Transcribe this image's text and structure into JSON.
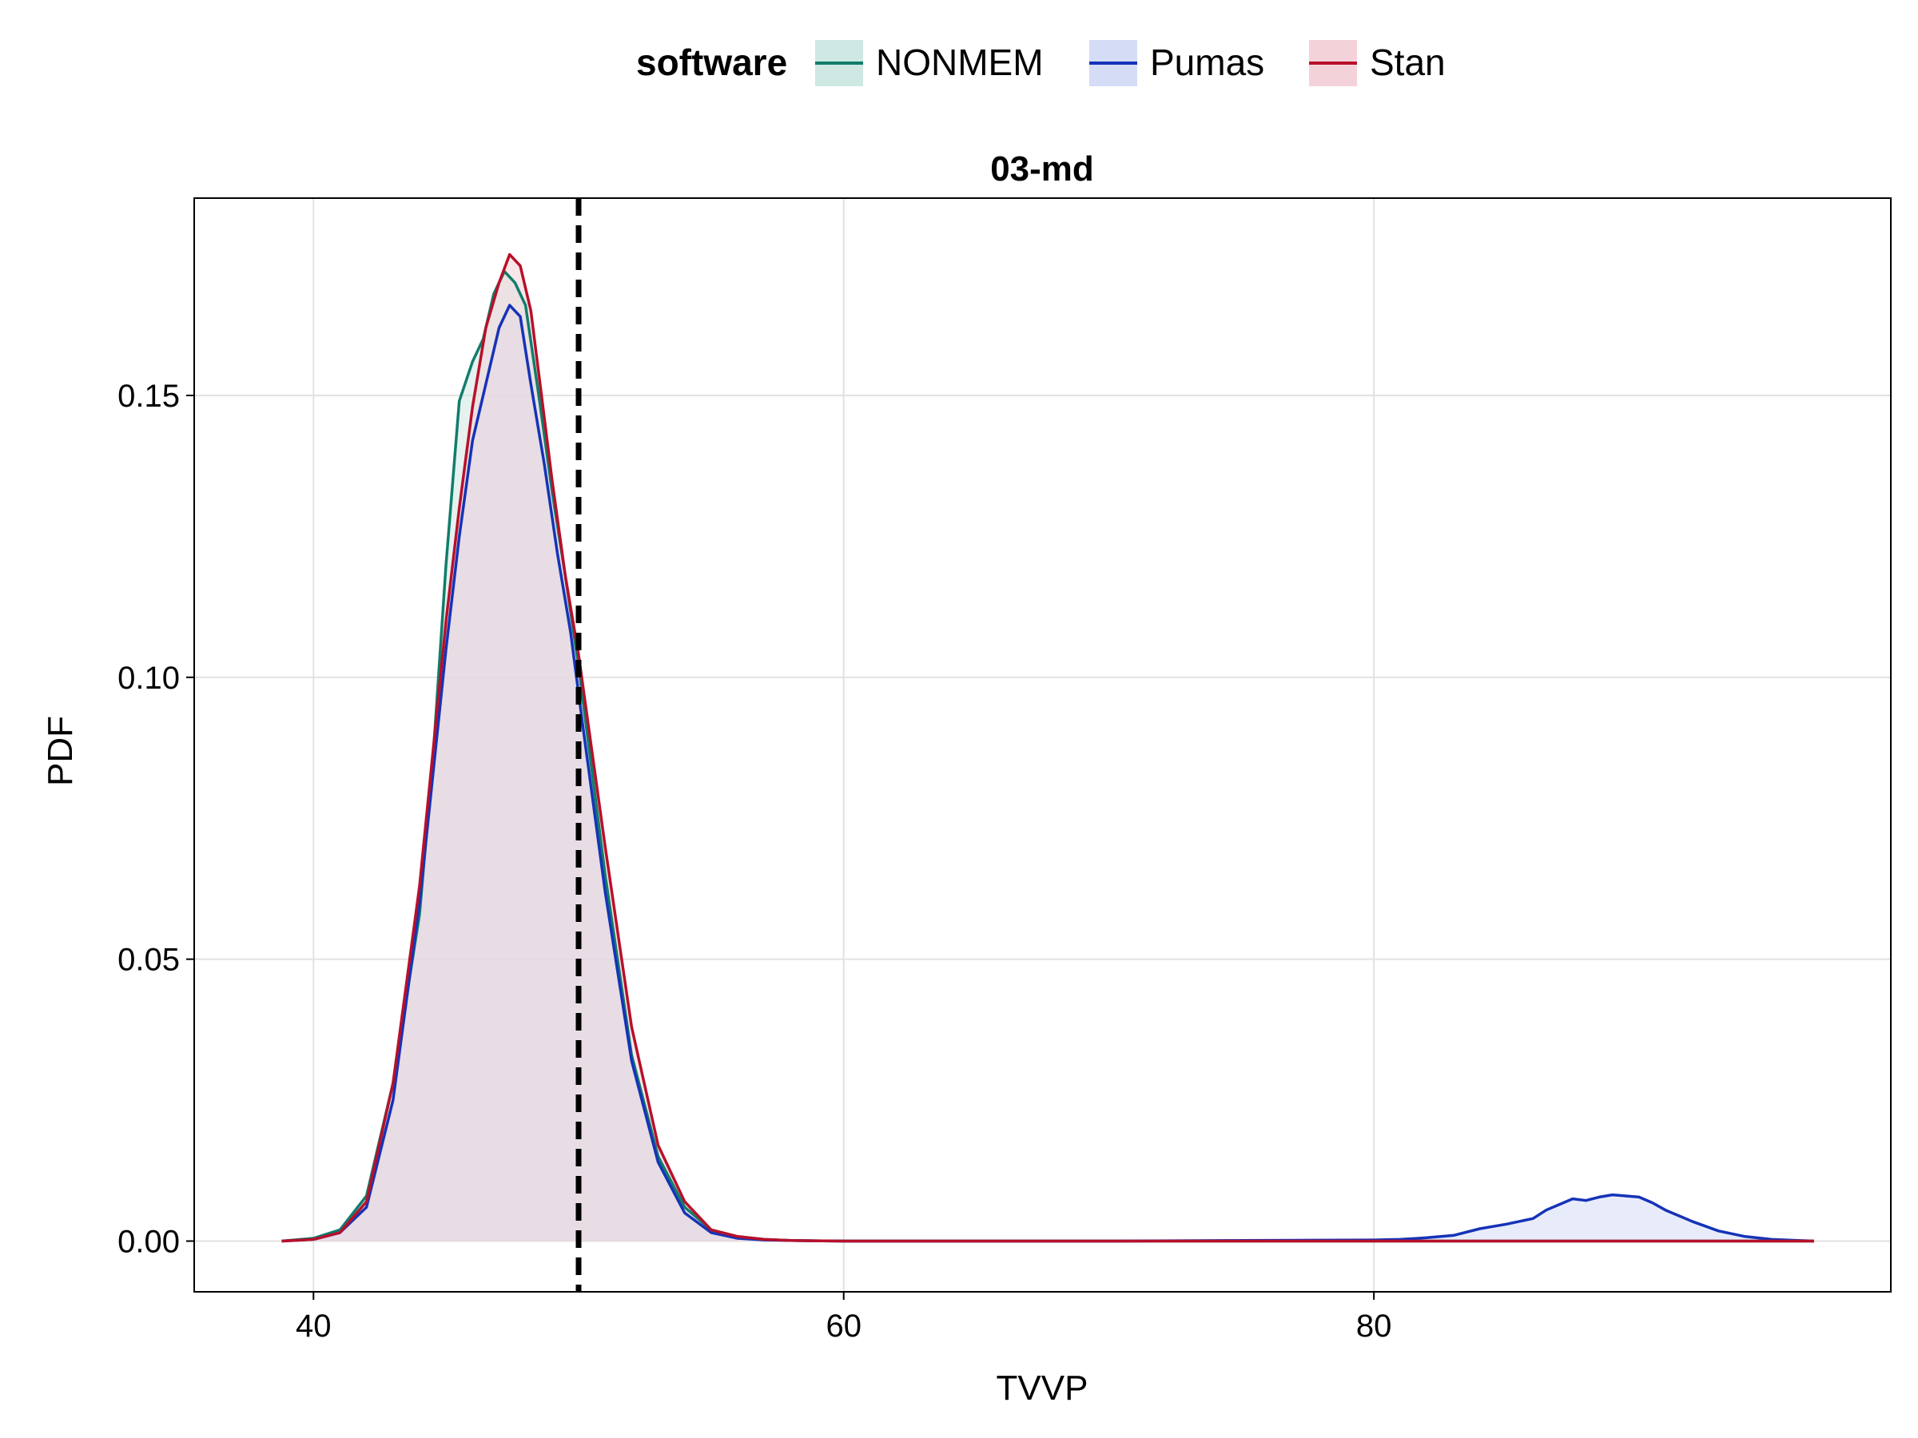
{
  "chart_data": {
    "type": "area",
    "title": "03-md",
    "xlabel": "TVVP",
    "ylabel": "PDF",
    "xlim": [
      35.5,
      99.5
    ],
    "ylim": [
      -0.009,
      0.185
    ],
    "xticks": [
      40,
      60,
      80
    ],
    "xtick_labels": [
      "40",
      "60",
      "80"
    ],
    "yticks": [
      0.0,
      0.05,
      0.1,
      0.15
    ],
    "ytick_labels": [
      "0.00",
      "0.05",
      "0.10",
      "0.15"
    ],
    "grid": true,
    "legend": {
      "title": "software",
      "position": "top-center",
      "entries": [
        "NONMEM",
        "Pumas",
        "Stan"
      ]
    },
    "reference_line": {
      "x": 50,
      "style": "dashed",
      "color": "#000000"
    },
    "series": [
      {
        "name": "NONMEM",
        "color": "#117d6b",
        "fill": "#cfe8e3",
        "x": [
          38.8,
          40,
          41,
          42,
          43,
          44,
          44.5,
          45,
          45.5,
          46,
          46.4,
          46.8,
          47.2,
          47.6,
          48,
          48.5,
          49,
          49.5,
          50,
          51,
          52,
          53,
          54,
          55,
          56,
          57,
          58,
          60,
          70,
          80,
          90,
          96.6
        ],
        "y": [
          0,
          0.0005,
          0.002,
          0.008,
          0.028,
          0.058,
          0.085,
          0.12,
          0.149,
          0.156,
          0.16,
          0.168,
          0.172,
          0.17,
          0.166,
          0.15,
          0.133,
          0.118,
          0.102,
          0.065,
          0.033,
          0.015,
          0.006,
          0.002,
          0.0008,
          0.0003,
          0.0001,
          0,
          0,
          0,
          0,
          0
        ]
      },
      {
        "name": "Pumas",
        "color": "#1533b8",
        "fill": "#d5dcf5",
        "x": [
          38.8,
          40,
          41,
          42,
          43,
          44,
          45,
          45.5,
          46,
          46.5,
          47,
          47.4,
          47.8,
          48.2,
          48.7,
          49.2,
          49.7,
          50.2,
          51,
          52,
          53,
          54,
          55,
          56,
          57,
          58,
          60,
          70,
          80,
          81,
          82,
          83,
          84,
          85,
          86,
          86.5,
          87,
          87.5,
          88,
          88.5,
          89,
          89.5,
          90,
          90.5,
          91,
          91.5,
          92,
          93,
          94,
          95,
          96,
          96.6
        ],
        "y": [
          0,
          0.0003,
          0.0015,
          0.006,
          0.025,
          0.06,
          0.105,
          0.125,
          0.142,
          0.152,
          0.162,
          0.166,
          0.164,
          0.152,
          0.138,
          0.122,
          0.108,
          0.09,
          0.062,
          0.032,
          0.014,
          0.005,
          0.0015,
          0.0005,
          0.0002,
          0.0001,
          0,
          0,
          0.0002,
          0.0003,
          0.0006,
          0.001,
          0.0022,
          0.003,
          0.004,
          0.0055,
          0.0065,
          0.0075,
          0.0072,
          0.0078,
          0.0082,
          0.008,
          0.0078,
          0.0068,
          0.0055,
          0.0045,
          0.0035,
          0.0018,
          0.0008,
          0.0003,
          0.0001,
          0
        ]
      },
      {
        "name": "Stan",
        "color": "#b8102a",
        "fill": "#f3d3d9",
        "x": [
          38.8,
          40,
          41,
          42,
          43,
          44,
          45,
          45.5,
          46,
          46.5,
          47,
          47.4,
          47.8,
          48.2,
          48.6,
          49,
          49.5,
          50,
          51,
          52,
          53,
          54,
          55,
          56,
          57,
          58,
          60,
          70,
          80,
          90,
          96.6
        ],
        "y": [
          0,
          0.0003,
          0.0015,
          0.007,
          0.028,
          0.063,
          0.11,
          0.13,
          0.148,
          0.162,
          0.17,
          0.175,
          0.173,
          0.165,
          0.15,
          0.135,
          0.118,
          0.104,
          0.07,
          0.038,
          0.017,
          0.007,
          0.002,
          0.0008,
          0.0003,
          0.0001,
          0,
          0,
          0,
          0,
          0
        ]
      }
    ]
  }
}
